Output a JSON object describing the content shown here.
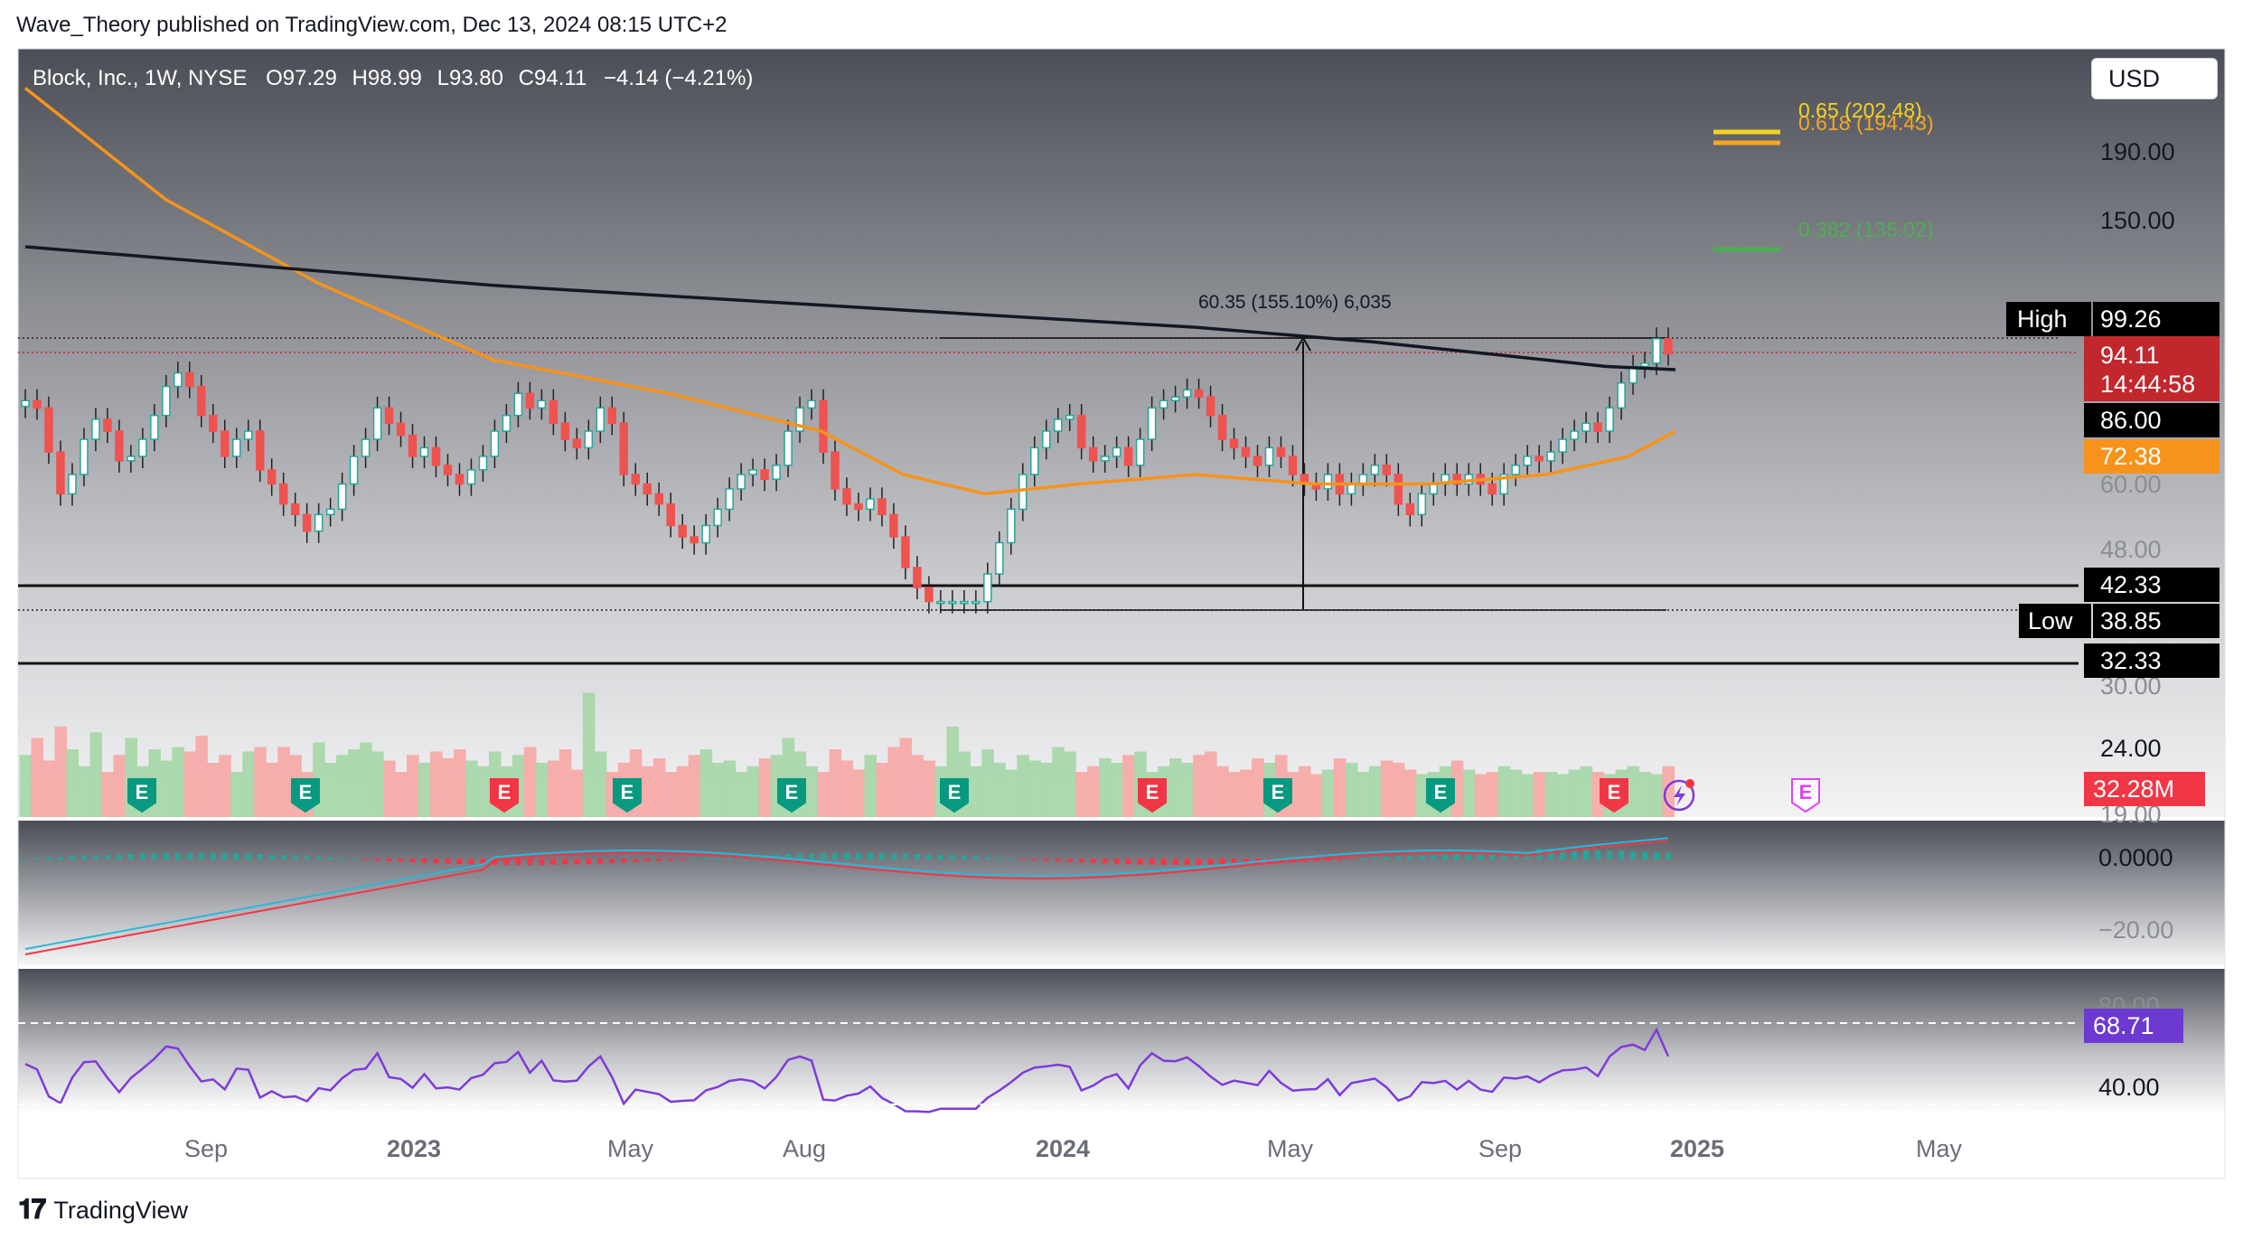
{
  "header": {
    "publisher_line": "Wave_Theory published on TradingView.com, Dec 13, 2024 08:15 UTC+2"
  },
  "legend": {
    "symbol": "Block, Inc., 1W, NYSE",
    "o_label": "O",
    "o": "97.29",
    "h_label": "H",
    "h": "98.99",
    "l_label": "L",
    "l": "93.80",
    "c_label": "C",
    "c": "94.11",
    "change": "−4.14 (−4.21%)"
  },
  "currency_button": "USD",
  "footer": {
    "brand": "TradingView"
  },
  "colors": {
    "up": "#26a69a",
    "down": "#ef5350",
    "ma_black": "#131722",
    "ma_orange": "#f7931a",
    "fib_065": "#f5d31f",
    "fib_0618": "#f5a623",
    "fib_0382": "#4caf50",
    "macd_line": "#2bb7da",
    "signal_line": "#f23645",
    "rsi_line": "#7e3bd9",
    "price_tag": "#c2272d",
    "rsi_tag": "#6c3ad0",
    "vol_up": "#a5d6a7",
    "vol_down": "#f7a7a5"
  },
  "chart_data": {
    "type": "candlestick",
    "symbol": "Block, Inc.",
    "interval": "1W",
    "exchange": "NYSE",
    "scale": "log",
    "x_ticks": [
      "Sep",
      "2023",
      "May",
      "Aug",
      "2024",
      "May",
      "Sep",
      "2025",
      "May"
    ],
    "y_ticks": [
      "190.00",
      "150.00",
      "60.00",
      "48.00",
      "30.00",
      "24.00",
      "19.00"
    ],
    "ohlc_last": {
      "open": 97.29,
      "high": 98.99,
      "low": 93.8,
      "close": 94.11
    },
    "closes": [
      80,
      78,
      67,
      58,
      62,
      70,
      75,
      72,
      65,
      66,
      70,
      76,
      84,
      88,
      84,
      76,
      72,
      66,
      70,
      72,
      63,
      60,
      56,
      54,
      51,
      54,
      55,
      60,
      66,
      70,
      78,
      74,
      71,
      66,
      68,
      64,
      62,
      60,
      63,
      66,
      72,
      76,
      82,
      78,
      80,
      74,
      70,
      68,
      72,
      78,
      74,
      62,
      60,
      58,
      56,
      52,
      50,
      49,
      52,
      55,
      59,
      62,
      63,
      61,
      64,
      72,
      78,
      80,
      67,
      59,
      56,
      55,
      57,
      54,
      50,
      45,
      42,
      40,
      40,
      40,
      40,
      40,
      44,
      49,
      55,
      62,
      68,
      72,
      75,
      76,
      68,
      65,
      66,
      68,
      64,
      70,
      78,
      80,
      81,
      83,
      81,
      76,
      70,
      68,
      66,
      64,
      68,
      66,
      62,
      60,
      59,
      62,
      58,
      60,
      62,
      64,
      62,
      56,
      54,
      58,
      60,
      62,
      60,
      62,
      60,
      58,
      62,
      64,
      66,
      65,
      67,
      70,
      72,
      74,
      72,
      78,
      85,
      90,
      91,
      99,
      94
    ],
    "ma_200_black": {
      "points": [
        [
          0,
          136
        ],
        [
          40,
          119
        ],
        [
          80,
          108
        ],
        [
          100,
          103
        ],
        [
          115,
          98
        ],
        [
          125,
          94
        ],
        [
          135,
          90
        ],
        [
          141,
          89
        ]
      ]
    },
    "ma_50_orange": {
      "points": [
        [
          0,
          235
        ],
        [
          12,
          160
        ],
        [
          25,
          120
        ],
        [
          40,
          92
        ],
        [
          55,
          82
        ],
        [
          68,
          72
        ],
        [
          75,
          62
        ],
        [
          82,
          58
        ],
        [
          90,
          60
        ],
        [
          100,
          62
        ],
        [
          110,
          60
        ],
        [
          120,
          60
        ],
        [
          130,
          62
        ],
        [
          137,
          66
        ],
        [
          141,
          72
        ]
      ]
    },
    "price_labels": {
      "high": {
        "label": "High",
        "value": "99.26"
      },
      "last": {
        "value": "94.11",
        "countdown": "14:44:58"
      },
      "ma200": "86.00",
      "ma50": "72.38",
      "support1": "42.33",
      "low": {
        "label": "Low",
        "value": "38.85"
      },
      "support2": "32.33",
      "volume": "32.28M"
    },
    "fibonacci": [
      {
        "label": "0.65 (202.48)",
        "value": 202.48
      },
      {
        "label": "0.618 (194.43)",
        "value": 194.43
      },
      {
        "label": "0.382 (135.02)",
        "value": 135.02
      }
    ],
    "measure": {
      "label": "60.35 (155.10%) 6,035"
    },
    "horizontal_levels": [
      42.33,
      32.33
    ],
    "earnings_markers": [
      "E",
      "E",
      "E",
      "E",
      "E",
      "E",
      "E",
      "E",
      "E",
      "E",
      "E"
    ],
    "volume": [
      55,
      70,
      50,
      80,
      60,
      45,
      75,
      40,
      55,
      70,
      45,
      60,
      50,
      62,
      58,
      72,
      48,
      55,
      40,
      58,
      62,
      48,
      62,
      55,
      40,
      66,
      48,
      55,
      60,
      66,
      58,
      50,
      40,
      55,
      48,
      58,
      52,
      60,
      50,
      45,
      58,
      45,
      55,
      62,
      48,
      50,
      60,
      42,
      110,
      58,
      40,
      48,
      60,
      45,
      52,
      40,
      45,
      55,
      60,
      48,
      50,
      40,
      45,
      52,
      55,
      70,
      58,
      45,
      40,
      60,
      50,
      42,
      55,
      48,
      62,
      70,
      55,
      50,
      45,
      80,
      58,
      45,
      60,
      48,
      42,
      55,
      50,
      48,
      62,
      58,
      40,
      45,
      52,
      48,
      55,
      58,
      40,
      45,
      52,
      48,
      55,
      58,
      45,
      40,
      42,
      52,
      48,
      55,
      40,
      45,
      38,
      42,
      52,
      48,
      40,
      45,
      50,
      48,
      42,
      38,
      40,
      45,
      50,
      42,
      38,
      40,
      45,
      42,
      38,
      40,
      40,
      38,
      42,
      45,
      40,
      38,
      42,
      45,
      40,
      38,
      45
    ],
    "macd": {
      "zero_label": "0.0000",
      "neg_label": "−20.00"
    },
    "rsi": {
      "upper_label": "80.00",
      "value_label": "68.71",
      "lower_label": "40.00"
    }
  }
}
